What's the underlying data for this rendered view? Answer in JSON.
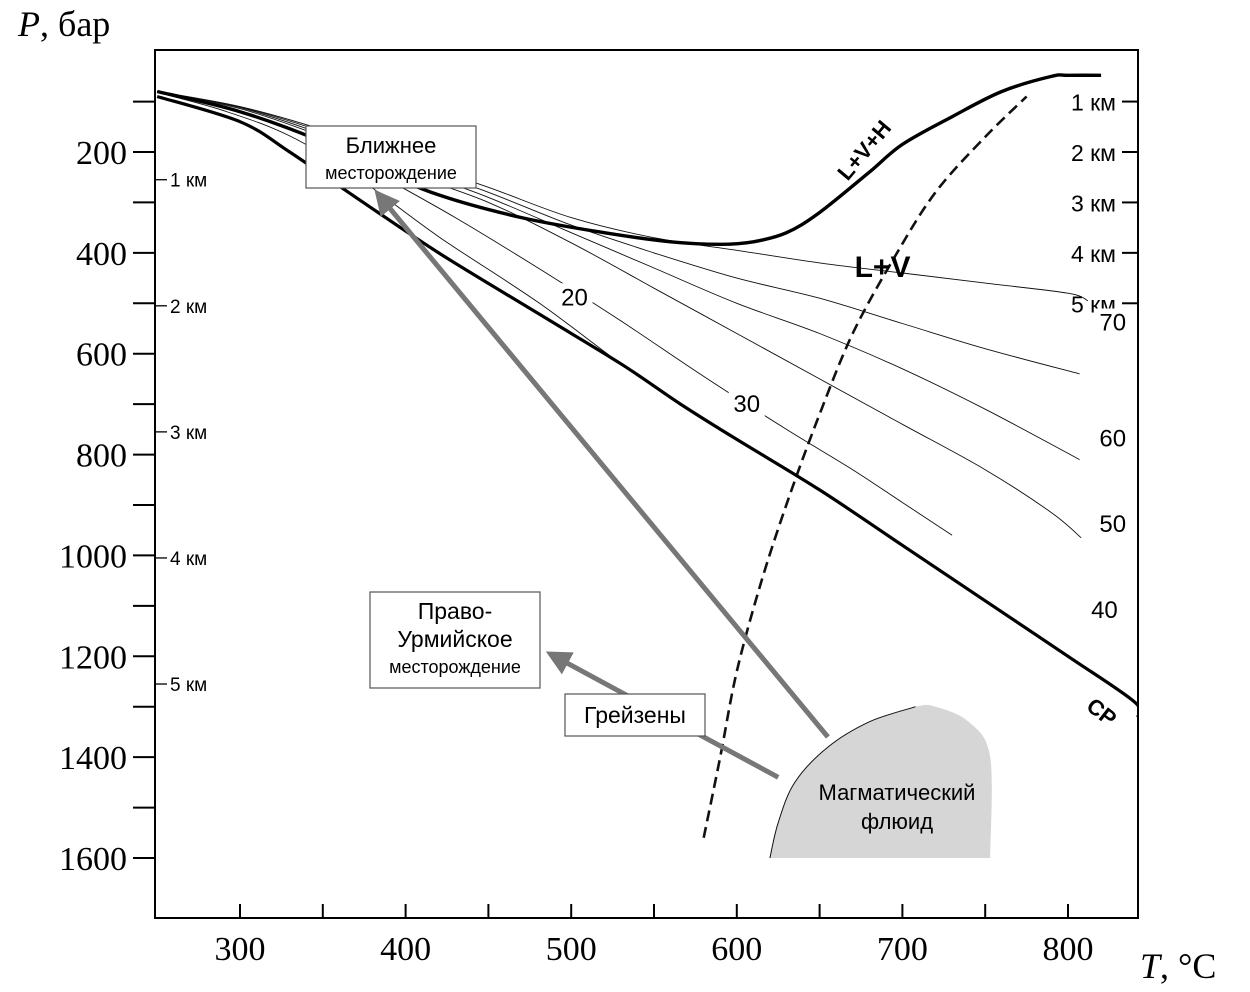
{
  "chart_data": {
    "type": "line",
    "ylabel_var": "P",
    "ylabel_unit": ", бар",
    "xlabel_var": "T",
    "xlabel_unit": ", °C",
    "xlim": [
      250,
      845
    ],
    "ylim": [
      1700,
      60
    ],
    "y_inverted": true,
    "grid": false,
    "x_ticks": [
      300,
      400,
      500,
      600,
      700,
      800
    ],
    "x_minor_ticks": [
      350,
      450,
      550,
      650,
      750
    ],
    "y_ticks": [
      200,
      400,
      600,
      800,
      1000,
      1200,
      1400,
      1600
    ],
    "y_minor_ticks": [
      100,
      300,
      500,
      700,
      900,
      1100,
      1300,
      1500
    ],
    "depth_left": [
      {
        "label": "1 км",
        "p": 255
      },
      {
        "label": "2 км",
        "p": 505
      },
      {
        "label": "3 км",
        "p": 755
      },
      {
        "label": "4 км",
        "p": 1005
      },
      {
        "label": "5 км",
        "p": 1255
      }
    ],
    "depth_right": [
      {
        "label": "1 км",
        "p": 100
      },
      {
        "label": "2 км",
        "p": 200
      },
      {
        "label": "3 км",
        "p": 300
      },
      {
        "label": "4 км",
        "p": 400
      },
      {
        "label": "5 км",
        "p": 500
      }
    ],
    "curves": {
      "lvh": {
        "label": "L+V+H",
        "points": [
          [
            250,
            80
          ],
          [
            300,
            120
          ],
          [
            350,
            180
          ],
          [
            380,
            230
          ],
          [
            420,
            285
          ],
          [
            470,
            330
          ],
          [
            520,
            360
          ],
          [
            560,
            378
          ],
          [
            590,
            383
          ],
          [
            610,
            378
          ],
          [
            630,
            360
          ],
          [
            650,
            320
          ],
          [
            680,
            240
          ],
          [
            700,
            185
          ],
          [
            730,
            130
          ],
          [
            760,
            80
          ],
          [
            790,
            50
          ],
          [
            800,
            48
          ],
          [
            820,
            48
          ]
        ]
      },
      "cp": {
        "label": "CP",
        "points": [
          [
            250,
            90
          ],
          [
            300,
            140
          ],
          [
            330,
            200
          ],
          [
            370,
            290
          ],
          [
            420,
            400
          ],
          [
            480,
            520
          ],
          [
            530,
            620
          ],
          [
            566,
            700
          ],
          [
            600,
            770
          ],
          [
            650,
            870
          ],
          [
            700,
            980
          ],
          [
            750,
            1090
          ],
          [
            800,
            1200
          ],
          [
            840,
            1290
          ],
          [
            852,
            1320
          ]
        ]
      },
      "isopleths": [
        {
          "label": "20",
          "label_at": [
            502,
            500
          ],
          "points": [
            [
              250,
              82
            ],
            [
              290,
              118
            ],
            [
              330,
              168
            ],
            [
              370,
              248
            ],
            [
              420,
              368
            ],
            [
              480,
              498
            ],
            [
              530,
              620
            ],
            [
              566,
              700
            ]
          ]
        },
        {
          "label": "30",
          "label_at": [
            606,
            712
          ],
          "points": [
            [
              250,
              81
            ],
            [
              295,
              116
            ],
            [
              340,
              166
            ],
            [
              380,
              238
            ],
            [
              430,
              330
            ],
            [
              480,
              430
            ],
            [
              530,
              535
            ],
            [
              580,
              645
            ],
            [
              630,
              750
            ],
            [
              670,
              830
            ],
            [
              700,
              895
            ],
            [
              730,
              960
            ]
          ]
        },
        {
          "label": "40",
          "label_at": [
            822,
            1120
          ],
          "points": [
            [
              250,
              81
            ],
            [
              300,
              114
            ],
            [
              350,
              170
            ],
            [
              400,
              240
            ],
            [
              450,
              300
            ],
            [
              500,
              380
            ],
            [
              550,
              470
            ],
            [
              600,
              560
            ],
            [
              650,
              650
            ],
            [
              700,
              740
            ],
            [
              750,
              830
            ],
            [
              790,
              915
            ],
            [
              808,
              965
            ]
          ]
        },
        {
          "label": "50",
          "label_at": [
            827,
            950
          ],
          "points": [
            [
              250,
              80
            ],
            [
              300,
              112
            ],
            [
              350,
              165
            ],
            [
              400,
              230
            ],
            [
              450,
              290
            ],
            [
              500,
              360
            ],
            [
              550,
              430
            ],
            [
              600,
              500
            ],
            [
              650,
              560
            ],
            [
              700,
              630
            ],
            [
              750,
              710
            ],
            [
              807,
              810
            ]
          ]
        },
        {
          "label": "60",
          "label_at": [
            827,
            780
          ],
          "points": [
            [
              250,
              80
            ],
            [
              300,
              111
            ],
            [
              350,
              160
            ],
            [
              400,
              222
            ],
            [
              450,
              280
            ],
            [
              500,
              345
            ],
            [
              550,
              400
            ],
            [
              600,
              450
            ],
            [
              650,
              490
            ],
            [
              700,
              540
            ],
            [
              750,
              590
            ],
            [
              807,
              640
            ]
          ]
        },
        {
          "label": "70",
          "label_at": [
            827,
            550
          ],
          "points": [
            [
              250,
              80
            ],
            [
              300,
              110
            ],
            [
              350,
              156
            ],
            [
              400,
              214
            ],
            [
              450,
              270
            ],
            [
              500,
              330
            ],
            [
              550,
              370
            ],
            [
              600,
              395
            ],
            [
              650,
              420
            ],
            [
              700,
              440
            ],
            [
              750,
              460
            ],
            [
              800,
              480
            ],
            [
              812,
              495
            ]
          ]
        }
      ],
      "dashed": {
        "points": [
          [
            580,
            1560
          ],
          [
            590,
            1400
          ],
          [
            600,
            1230
          ],
          [
            615,
            1050
          ],
          [
            632,
            880
          ],
          [
            650,
            720
          ],
          [
            670,
            560
          ],
          [
            695,
            410
          ],
          [
            720,
            280
          ],
          [
            750,
            170
          ],
          [
            775,
            90
          ]
        ]
      }
    },
    "regions": {
      "lv_label": "L+V",
      "lv_label_at": [
        688,
        420
      ],
      "magmatic": {
        "label_lines": [
          "Магматический",
          "флюид"
        ],
        "points": [
          [
            620,
            1600
          ],
          [
            625,
            1530
          ],
          [
            635,
            1450
          ],
          [
            655,
            1380
          ],
          [
            680,
            1330
          ],
          [
            708,
            1300
          ],
          [
            720,
            1300
          ],
          [
            740,
            1330
          ],
          [
            753,
            1400
          ],
          [
            753,
            1600
          ]
        ]
      }
    },
    "annotations": [
      {
        "name": "blizhnee",
        "lines": [
          "Ближнее",
          "месторождение"
        ],
        "at": [
          393,
          255
        ]
      },
      {
        "name": "pravo-urmiyskoe",
        "lines": [
          "Право-",
          "Урмийское",
          "месторождение"
        ],
        "at": [
          438,
          1200
        ]
      },
      {
        "name": "greyzeny",
        "lines": [
          "Грейзены"
        ],
        "at": [
          490,
          1310
        ]
      }
    ],
    "arrows": [
      {
        "from": [
          655,
          1360
        ],
        "to": [
          385,
          290
        ]
      },
      {
        "from": [
          625,
          1440
        ],
        "to": [
          490,
          1200
        ]
      }
    ]
  }
}
